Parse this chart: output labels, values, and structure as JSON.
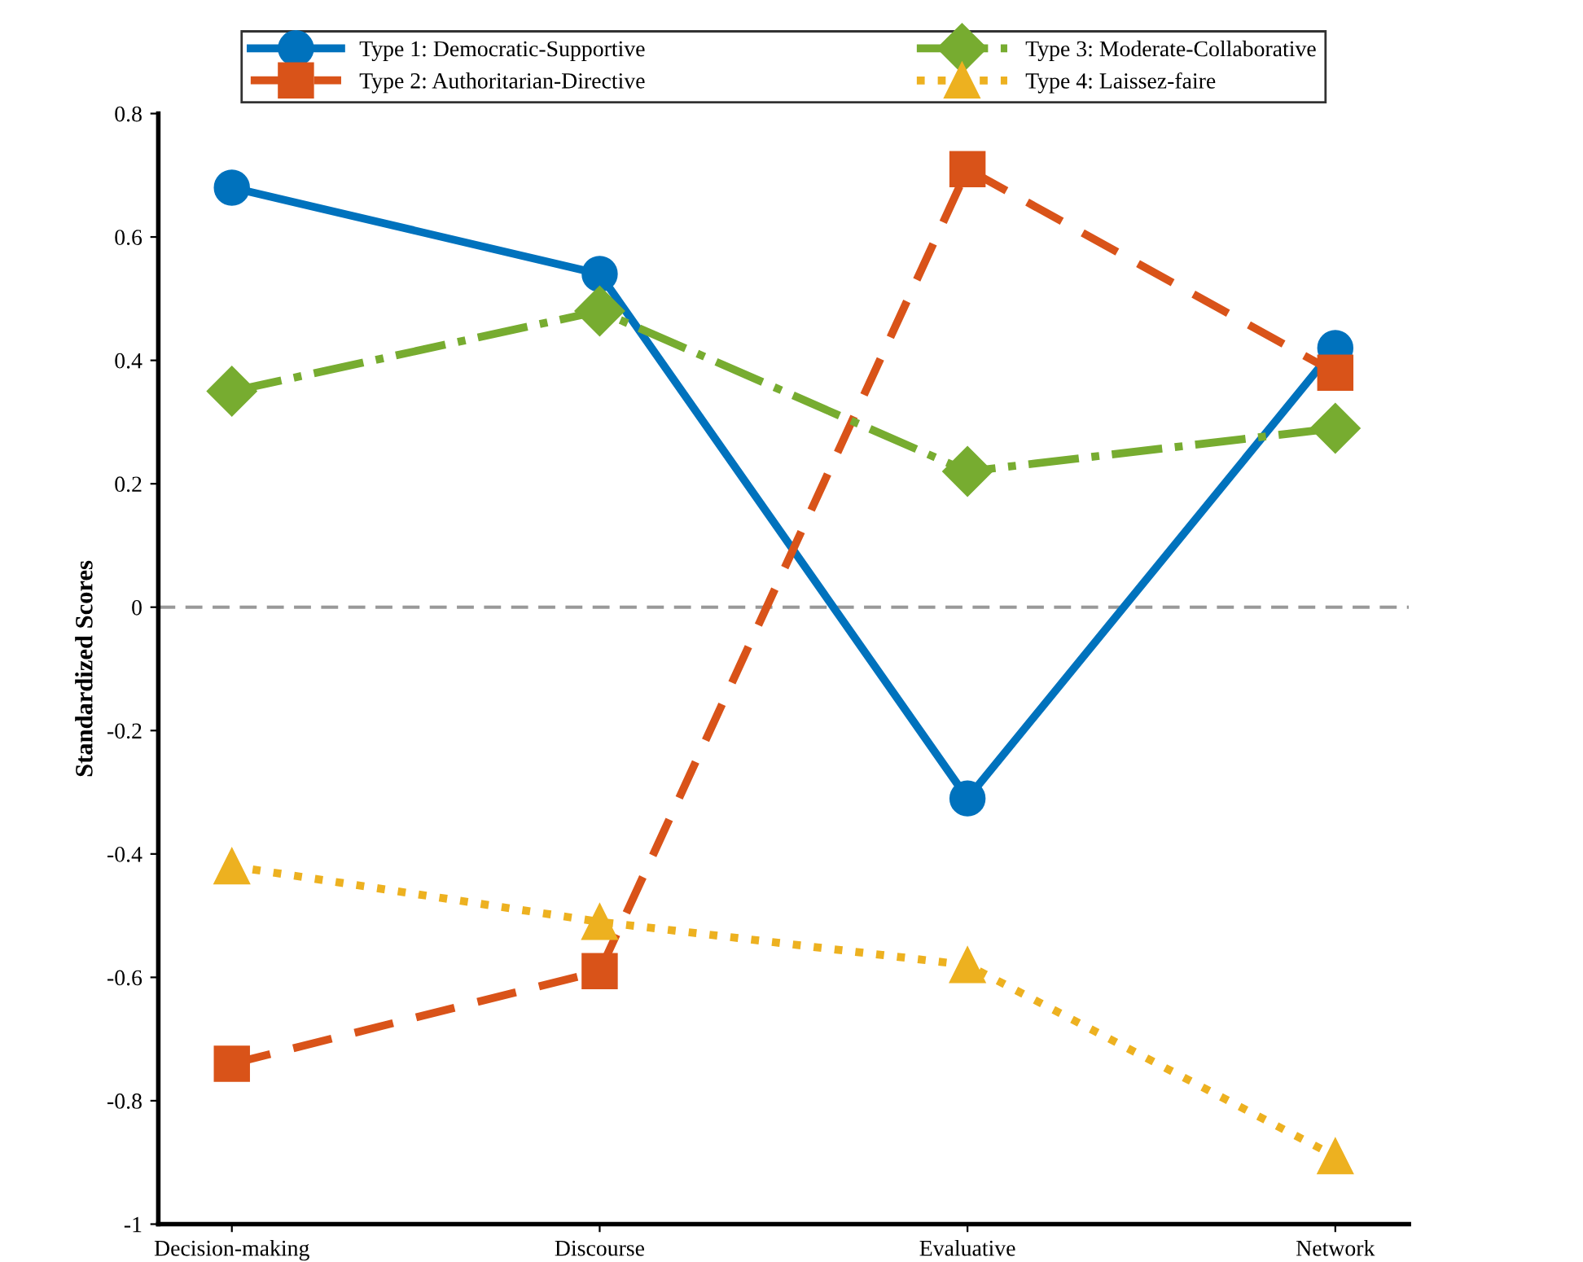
{
  "chart_data": {
    "type": "line",
    "ylabel": "Standardized Scores",
    "categories": [
      "Decision-making",
      "Discourse",
      "Evaluative",
      "Network"
    ],
    "series": [
      {
        "name": "Type 1: Democratic-Supportive",
        "color": "#0072bd",
        "values": [
          0.68,
          0.54,
          -0.31,
          0.42
        ],
        "marker": "circle",
        "line_style": "solid"
      },
      {
        "name": "Type 2: Authoritarian-Directive",
        "color": "#d95319",
        "values": [
          -0.74,
          -0.59,
          0.71,
          0.38
        ],
        "marker": "square",
        "line_style": "dashed"
      },
      {
        "name": "Type 3: Moderate-Collaborative",
        "color": "#77ac30",
        "values": [
          0.35,
          0.48,
          0.22,
          0.29
        ],
        "marker": "diamond",
        "line_style": "dashdot"
      },
      {
        "name": "Type 4: Laissez-faire",
        "color": "#edb120",
        "values": [
          -0.42,
          -0.51,
          -0.58,
          -0.89
        ],
        "marker": "triangle",
        "line_style": "dotted"
      }
    ],
    "ylim": [
      -1,
      0.8
    ],
    "yticks": [
      -1,
      -0.8,
      -0.6,
      -0.4,
      -0.2,
      0,
      0.2,
      0.4,
      0.6,
      0.8
    ],
    "ref_lines": [
      {
        "axis": "y",
        "value": 0,
        "color": "#999999",
        "line_style": "dashed"
      }
    ],
    "grid": false,
    "legend": "top"
  }
}
